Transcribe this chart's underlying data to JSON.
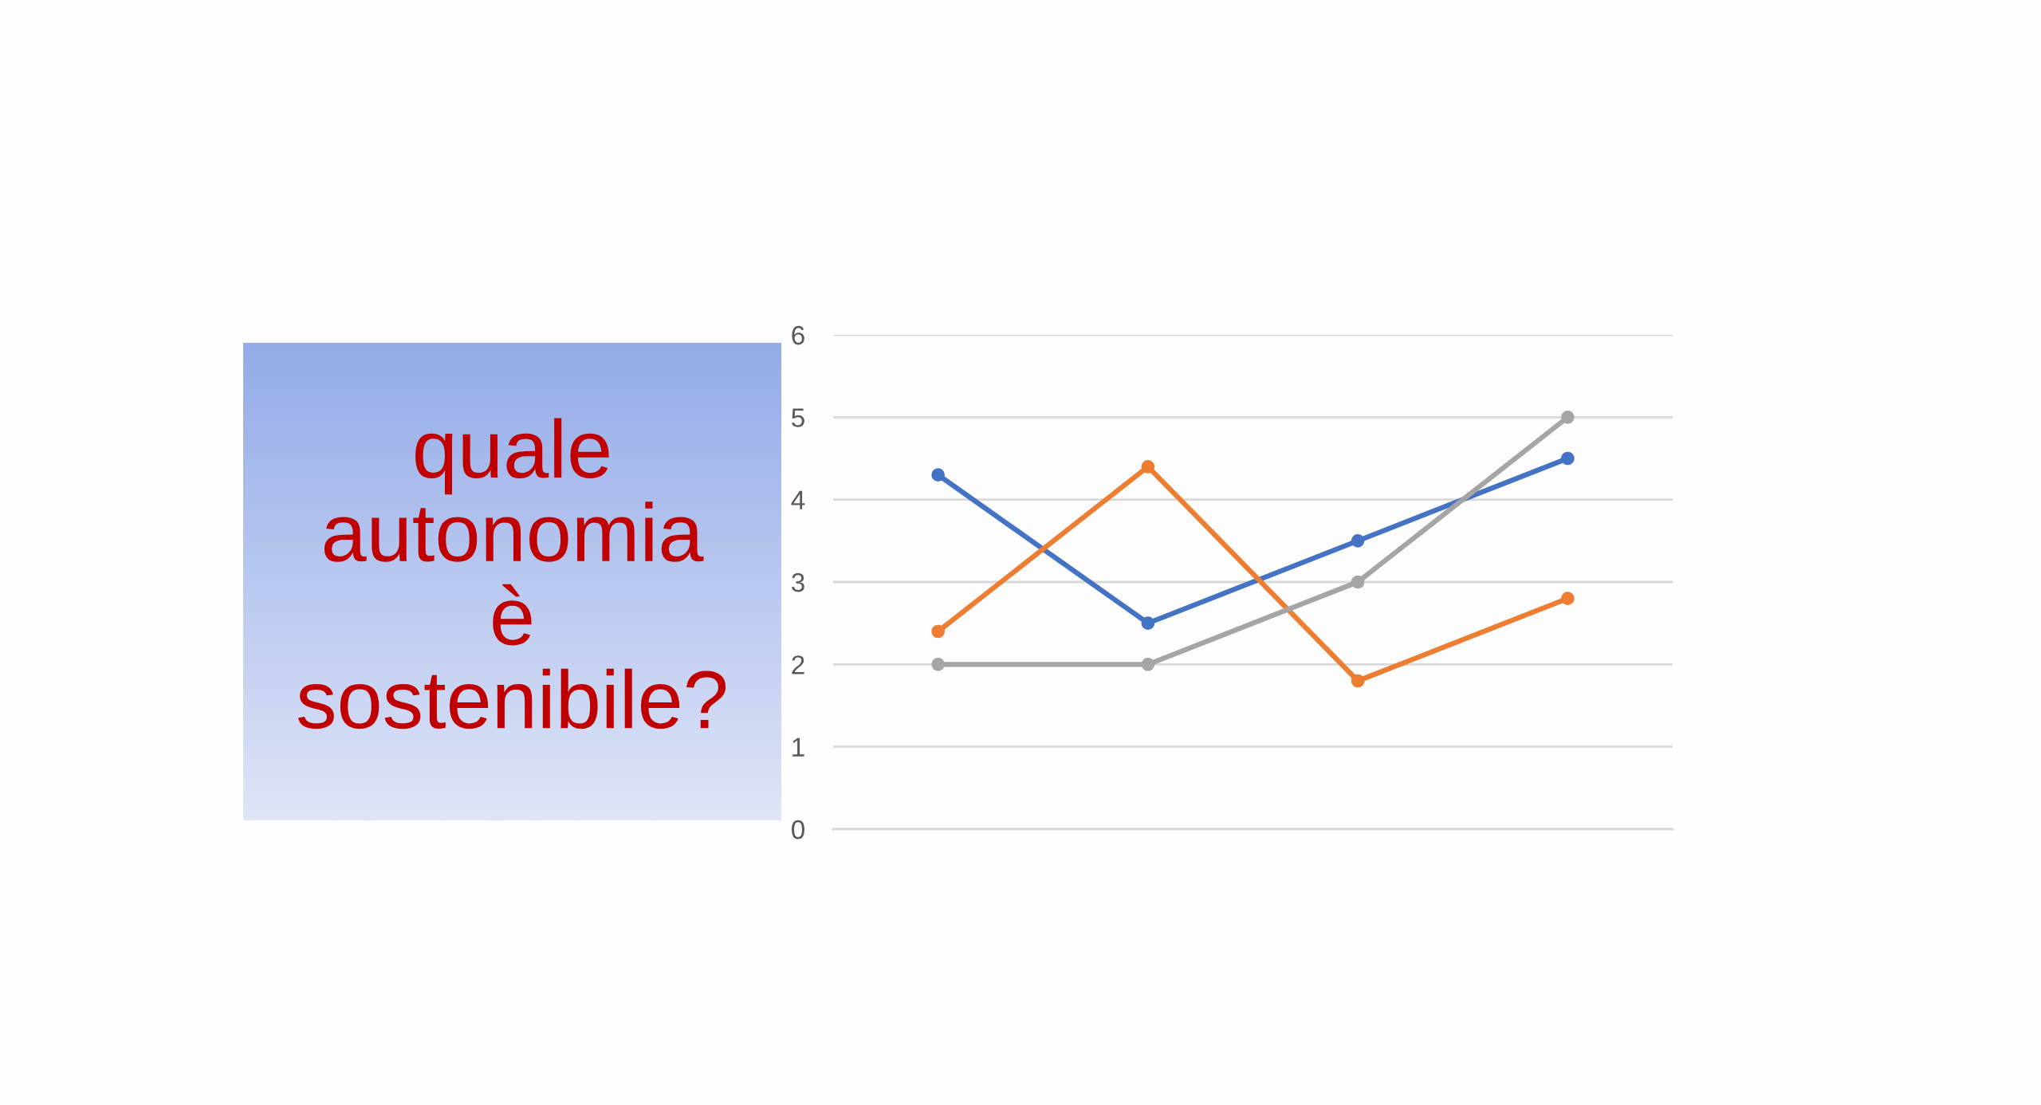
{
  "chart_data": {
    "type": "line",
    "title": "quale\nautonomia\nè\nsostenibile?",
    "categories": [
      null,
      null,
      null,
      null
    ],
    "series": [
      {
        "color": "#4472c4",
        "values": [
          4.3,
          2.5,
          3.5,
          4.5
        ]
      },
      {
        "color": "#ed7d31",
        "values": [
          2.4,
          4.4,
          1.8,
          2.8
        ]
      },
      {
        "color": "#a5a5a5",
        "values": [
          2,
          2,
          3,
          5
        ]
      }
    ],
    "ylim": [
      0,
      6
    ],
    "yticks": [
      0,
      1,
      2,
      3,
      4,
      5,
      6
    ],
    "grid": "y",
    "marker": "circle",
    "line_style": "solid",
    "tick_labels": "y"
  }
}
